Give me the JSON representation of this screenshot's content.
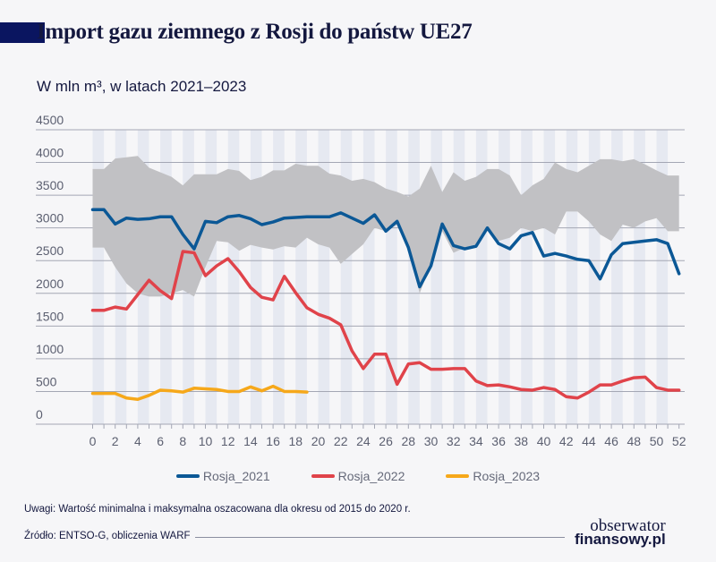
{
  "title": "Import gazu ziemnego z Rosji do państw UE27",
  "subtitle": "W mln m³, w latach 2021–2023",
  "note": "Uwagi: Wartość minimalna i maksymalna oszacowana dla okresu od 2015 do 2020 r.",
  "source": "Źródło: ENTSO-G, obliczenia WARF",
  "logo": {
    "line1": "obserwator",
    "line2": "finansowy.pl"
  },
  "colors": {
    "Rosja_2021": "#0b5896",
    "Rosja_2022": "#e0434a",
    "Rosja_2023": "#f6a81a",
    "band": "#c1c1c4",
    "stripe": "#e6e9f1"
  },
  "chart_data": {
    "type": "line",
    "ylim": [
      0,
      4500
    ],
    "yticks": [
      0,
      500,
      1000,
      1500,
      2000,
      2500,
      3000,
      3500,
      4000,
      4500
    ],
    "xlim": [
      0,
      52
    ],
    "xticks": [
      0,
      2,
      4,
      6,
      8,
      10,
      12,
      14,
      16,
      18,
      20,
      22,
      24,
      26,
      28,
      30,
      32,
      34,
      36,
      38,
      40,
      42,
      44,
      46,
      48,
      50,
      52
    ],
    "grid": true,
    "legend_position": "bottom",
    "band": {
      "description_source": "note",
      "max": [
        3900,
        3900,
        4060,
        4080,
        4100,
        3920,
        3850,
        3780,
        3650,
        3820,
        3820,
        3820,
        3900,
        3870,
        3730,
        3780,
        3880,
        3880,
        3980,
        3950,
        3950,
        3830,
        3800,
        3720,
        3750,
        3700,
        3600,
        3550,
        3480,
        3600,
        3950,
        3550,
        3850,
        3720,
        3780,
        3900,
        3900,
        3800,
        3500,
        3650,
        3750,
        4000,
        3900,
        3850,
        3950,
        4050,
        4050,
        4020,
        4050,
        3970,
        3880,
        3800,
        3800
      ],
      "min": [
        2700,
        2700,
        2400,
        2150,
        2000,
        1950,
        1950,
        2000,
        2050,
        1950,
        2400,
        2800,
        2780,
        2650,
        2740,
        2700,
        2670,
        2720,
        2700,
        2850,
        2750,
        2700,
        2450,
        2600,
        2750,
        3000,
        2950,
        3050,
        2700,
        2000,
        2450,
        2950,
        2620,
        2700,
        2750,
        3000,
        2800,
        2850,
        3000,
        2950,
        3000,
        2900,
        3250,
        3250,
        3100,
        2900,
        2800,
        3050,
        3000,
        3100,
        3150,
        2950,
        2950
      ]
    },
    "series": [
      {
        "name": "Rosja_2021",
        "values": [
          3280,
          3280,
          3060,
          3150,
          3130,
          3140,
          3170,
          3170,
          2900,
          2680,
          3100,
          3080,
          3170,
          3190,
          3140,
          3050,
          3090,
          3150,
          3160,
          3170,
          3170,
          3170,
          3230,
          3150,
          3070,
          3200,
          2950,
          3100,
          2700,
          2100,
          2420,
          3060,
          2730,
          2680,
          2720,
          3000,
          2760,
          2680,
          2880,
          2930,
          2570,
          2610,
          2570,
          2520,
          2500,
          2220,
          2590,
          2760,
          2780,
          2800,
          2820,
          2760,
          2300
        ]
      },
      {
        "name": "Rosja_2022",
        "values": [
          1740,
          1740,
          1790,
          1760,
          1980,
          2200,
          2040,
          1920,
          2640,
          2620,
          2270,
          2420,
          2530,
          2330,
          2090,
          1940,
          1900,
          2260,
          2010,
          1780,
          1680,
          1620,
          1520,
          1120,
          850,
          1070,
          1070,
          610,
          920,
          940,
          840,
          840,
          850,
          850,
          660,
          590,
          600,
          570,
          530,
          520,
          560,
          530,
          420,
          400,
          490,
          600,
          600,
          660,
          710,
          720,
          560,
          520,
          520
        ]
      },
      {
        "name": "Rosja_2023",
        "values": [
          470,
          470,
          470,
          400,
          380,
          440,
          520,
          510,
          490,
          550,
          540,
          530,
          500,
          500,
          570,
          510,
          580,
          500,
          500,
          490
        ]
      }
    ]
  }
}
